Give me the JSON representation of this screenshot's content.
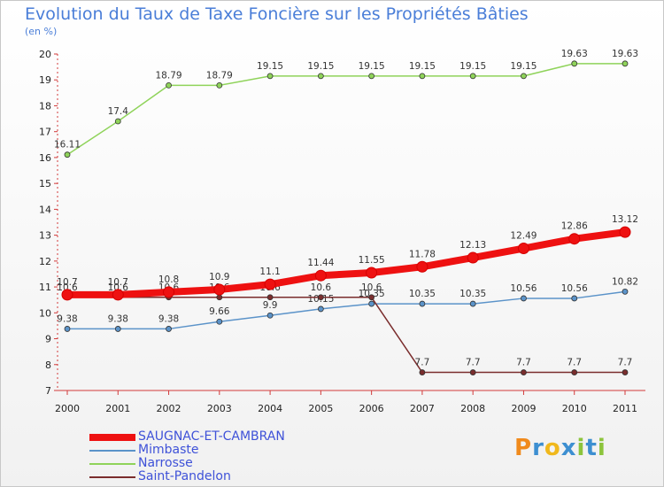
{
  "header": {
    "title": "Evolution du Taux de Taxe Foncière sur les Propriétés Bâties",
    "subtitle": "(en %)"
  },
  "logo": {
    "text": "Proxiti"
  },
  "chart_data": {
    "type": "line",
    "x": [
      "2000",
      "2001",
      "2002",
      "2003",
      "2004",
      "2005",
      "2006",
      "2007",
      "2008",
      "2009",
      "2010",
      "2011"
    ],
    "ylim": [
      7,
      20
    ],
    "yticks": [
      7,
      8,
      9,
      10,
      11,
      12,
      13,
      14,
      15,
      16,
      17,
      18,
      19,
      20
    ],
    "grid": false,
    "legend_position": "bottom-left",
    "series": [
      {
        "name": "SAUGNAC-ET-CAMBRAN",
        "color": "#ee1111",
        "emphasis": true,
        "values": [
          10.7,
          10.7,
          10.8,
          10.9,
          11.1,
          11.44,
          11.55,
          11.78,
          12.13,
          12.49,
          12.86,
          13.12
        ],
        "labels": [
          "10.7",
          "10.7",
          "10.8",
          "10.9",
          "11.1",
          "11.44",
          "11.55",
          "11.78",
          "12.13",
          "12.49",
          "12.86",
          "13.12"
        ]
      },
      {
        "name": "Mimbaste",
        "color": "#5b93c9",
        "emphasis": false,
        "values": [
          9.38,
          9.38,
          9.38,
          9.66,
          9.9,
          10.15,
          10.35,
          10.35,
          10.35,
          10.56,
          10.56,
          10.82
        ],
        "labels": [
          "9.38",
          "9.38",
          "9.38",
          "9.66",
          "9.9",
          "10.15",
          "10.35",
          "10.35",
          "10.35",
          "10.56",
          "10.56",
          "10.82"
        ]
      },
      {
        "name": "Narrosse",
        "color": "#8fd35a",
        "emphasis": false,
        "values": [
          16.11,
          17.4,
          18.79,
          18.79,
          19.15,
          19.15,
          19.15,
          19.15,
          19.15,
          19.15,
          19.63,
          19.63
        ],
        "labels": [
          "16.11",
          "17.4",
          "18.79",
          "18.79",
          "19.15",
          "19.15",
          "19.15",
          "19.15",
          "19.15",
          "19.15",
          "19.63",
          "19.63"
        ]
      },
      {
        "name": "Saint-Pandelon",
        "color": "#7a2d2d",
        "emphasis": false,
        "values": [
          10.6,
          10.6,
          10.6,
          10.6,
          10.6,
          10.6,
          10.6,
          7.7,
          7.7,
          7.7,
          7.7,
          7.7
        ],
        "labels": [
          "10.6",
          "10.6",
          "10.6",
          "10.6",
          "10.6",
          "10.6",
          "10.6",
          "7.7",
          "7.7",
          "7.7",
          "7.7",
          "7.7"
        ]
      }
    ]
  }
}
